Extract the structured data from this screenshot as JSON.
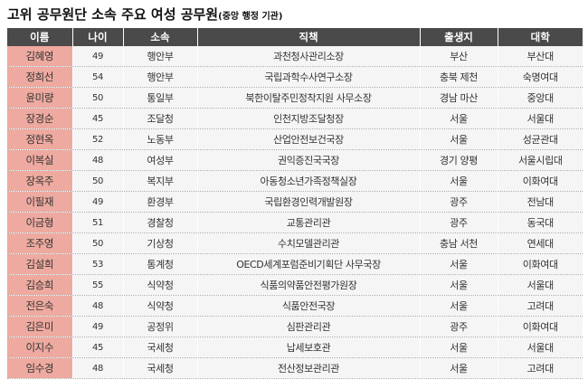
{
  "title": "고위 공무원단 소속 주요 여성 공무원",
  "subtitle": "(중앙 행정 기관)",
  "headers": [
    "이름",
    "나이",
    "소속",
    "직책",
    "출생지",
    "대학"
  ],
  "rows": [
    [
      "김혜영",
      "49",
      "행안부",
      "과천청사관리소장",
      "부산",
      "부산대"
    ],
    [
      "정희선",
      "54",
      "행안부",
      "국립과학수사연구소장",
      "충북 제천",
      "숙명여대"
    ],
    [
      "윤미량",
      "50",
      "통일부",
      "북한이탈주민정착지원 사무소장",
      "경남 마산",
      "중앙대"
    ],
    [
      "장경순",
      "45",
      "조달청",
      "인천지방조달청장",
      "서울",
      "서울대"
    ],
    [
      "정현옥",
      "52",
      "노동부",
      "산업안전보건국장",
      "서울",
      "성균관대"
    ],
    [
      "이복실",
      "48",
      "여성부",
      "권익증진국국장",
      "경기 양평",
      "서울시립대"
    ],
    [
      "장옥주",
      "50",
      "복지부",
      "아동청소년가족정책실장",
      "서울",
      "이화여대"
    ],
    [
      "이필재",
      "49",
      "환경부",
      "국립환경인력개발원장",
      "광주",
      "전남대"
    ],
    [
      "이금형",
      "51",
      "경찰청",
      "교통관리관",
      "광주",
      "동국대"
    ],
    [
      "조주영",
      "50",
      "기상청",
      "수치모델관리관",
      "충남 서천",
      "연세대"
    ],
    [
      "김설희",
      "53",
      "통계청",
      "OECD세계포럼준비기획단 사무국장",
      "서울",
      "이화여대"
    ],
    [
      "김승희",
      "55",
      "식약청",
      "식품의약품안전평가원장",
      "서울",
      "서울대"
    ],
    [
      "전은숙",
      "48",
      "식약청",
      "식품안전국장",
      "서울",
      "고려대"
    ],
    [
      "김은미",
      "49",
      "공정위",
      "심판관리관",
      "광주",
      "이화여대"
    ],
    [
      "이지수",
      "45",
      "국세청",
      "납세보호관",
      "서울",
      "서울대"
    ],
    [
      "임수경",
      "48",
      "국세청",
      "전산정보관리관",
      "서울",
      "고려대"
    ]
  ]
}
